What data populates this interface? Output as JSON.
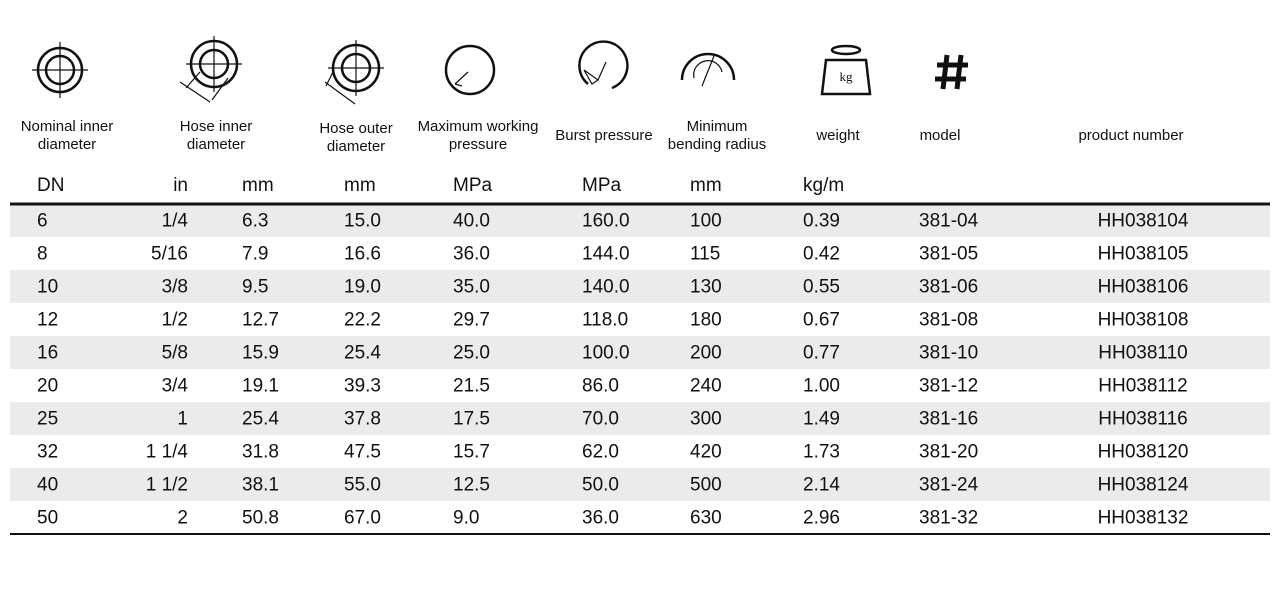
{
  "table": {
    "headers": [
      [
        "Nominal inner",
        "diameter"
      ],
      [
        "Hose inner",
        "diameter"
      ],
      [
        "Hose outer",
        "diameter"
      ],
      [
        "Maximum working",
        "pressure"
      ],
      [
        "Burst pressure"
      ],
      [
        "Minimum",
        "bending radius"
      ],
      [
        "weight"
      ],
      [
        "model"
      ],
      [
        "product number"
      ]
    ],
    "weight_icon_label": "kg",
    "units": [
      "DN",
      "in",
      "mm",
      "mm",
      "MPa",
      "MPa",
      "mm",
      "kg/m"
    ],
    "rows": [
      [
        "6",
        "1/4",
        "6.3",
        "15.0",
        "40.0",
        "160.0",
        "100",
        "0.39",
        "381-04",
        "HH038104"
      ],
      [
        "8",
        "5/16",
        "7.9",
        "16.6",
        "36.0",
        "144.0",
        "115",
        "0.42",
        "381-05",
        "HH038105"
      ],
      [
        "10",
        "3/8",
        "9.5",
        "19.0",
        "35.0",
        "140.0",
        "130",
        "0.55",
        "381-06",
        "HH038106"
      ],
      [
        "12",
        "1/2",
        "12.7",
        "22.2",
        "29.7",
        "118.0",
        "180",
        "0.67",
        "381-08",
        "HH038108"
      ],
      [
        "16",
        "5/8",
        "15.9",
        "25.4",
        "25.0",
        "100.0",
        "200",
        "0.77",
        "381-10",
        "HH038110"
      ],
      [
        "20",
        "3/4",
        "19.1",
        "39.3",
        "21.5",
        "86.0",
        "240",
        "1.00",
        "381-12",
        "HH038112"
      ],
      [
        "25",
        "1",
        "25.4",
        "37.8",
        "17.5",
        "70.0",
        "300",
        "1.49",
        "381-16",
        "HH038116"
      ],
      [
        "32",
        "1 1/4",
        "31.8",
        "47.5",
        "15.7",
        "62.0",
        "420",
        "1.73",
        "381-20",
        "HH038120"
      ],
      [
        "40",
        "1 1/2",
        "38.1",
        "55.0",
        "12.5",
        "50.0",
        "500",
        "2.14",
        "381-24",
        "HH038124"
      ],
      [
        "50",
        "2",
        "50.8",
        "67.0",
        "9.0",
        "36.0",
        "630",
        "2.96",
        "381-32",
        "HH038132"
      ]
    ]
  }
}
